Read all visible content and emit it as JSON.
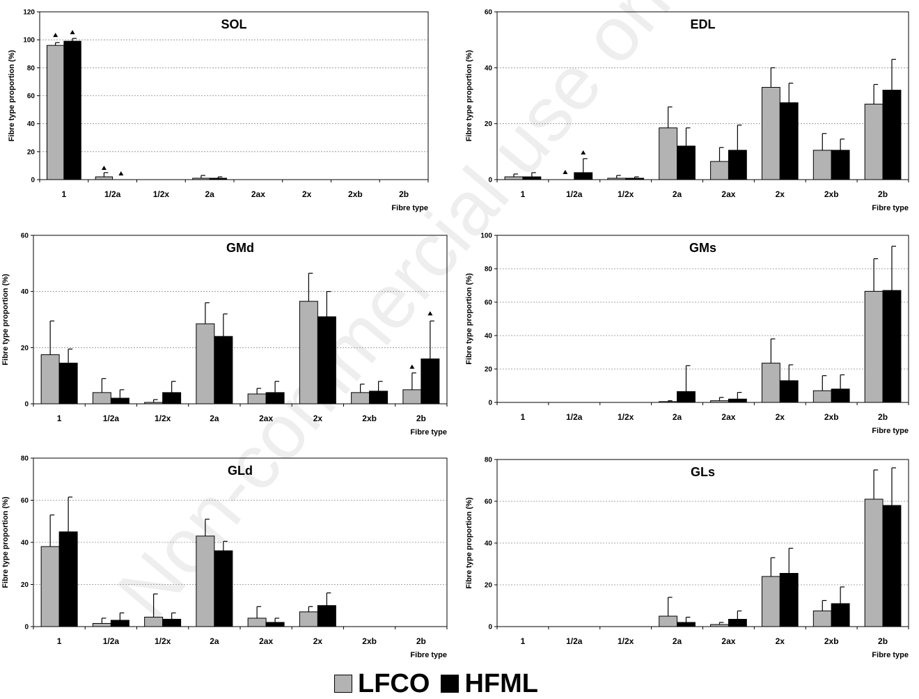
{
  "watermark": "Non-commercial use only",
  "legend": {
    "items": [
      {
        "label": "LFCO",
        "color": "#b3b3b3"
      },
      {
        "label": "HFML",
        "color": "#000000"
      }
    ]
  },
  "chart_data": [
    {
      "type": "bar",
      "title": "SOL",
      "xlabel": "Fibre type",
      "ylabel": "Fibre type proportion (%)",
      "ylim": [
        0,
        120
      ],
      "yticks": [
        0,
        20,
        40,
        60,
        80,
        100,
        120
      ],
      "grid": true,
      "categories": [
        "1",
        "1/2a",
        "1/2x",
        "2a",
        "2ax",
        "2x",
        "2xb",
        "2b"
      ],
      "series": [
        {
          "name": "LFCO",
          "color": "#b3b3b3",
          "values": [
            96,
            2,
            0,
            1,
            0,
            0,
            0,
            0
          ],
          "errors": [
            2,
            3,
            0,
            2,
            0,
            0,
            0,
            0
          ]
        },
        {
          "name": "HFML",
          "color": "#000000",
          "values": [
            99,
            0,
            0,
            1,
            0,
            0,
            0,
            0
          ],
          "errors": [
            2,
            0,
            0,
            1,
            0,
            0,
            0,
            0
          ]
        }
      ],
      "markers": [
        {
          "category": 0,
          "series": 0,
          "y": 102
        },
        {
          "category": 0,
          "series": 1,
          "y": 104
        },
        {
          "category": 1,
          "series": 0,
          "y": 7
        },
        {
          "category": 1,
          "series": 1,
          "y": 3
        }
      ]
    },
    {
      "type": "bar",
      "title": "EDL",
      "xlabel": "Fibre type",
      "ylabel": "Fibre type proportion (%)",
      "ylim": [
        0,
        60
      ],
      "yticks": [
        0,
        20,
        40,
        60
      ],
      "grid": true,
      "categories": [
        "1",
        "1/2a",
        "1/2x",
        "2a",
        "2ax",
        "2x",
        "2xb",
        "2b"
      ],
      "series": [
        {
          "name": "LFCO",
          "color": "#b3b3b3",
          "values": [
            1,
            0,
            0.5,
            18.5,
            6.5,
            33,
            10.5,
            27
          ],
          "errors": [
            1,
            0,
            1,
            7.5,
            5,
            7,
            6,
            7
          ]
        },
        {
          "name": "HFML",
          "color": "#000000",
          "values": [
            1,
            2.5,
            0.5,
            12,
            10.5,
            27.5,
            10.5,
            32
          ],
          "errors": [
            1.5,
            5,
            0.5,
            6.5,
            9,
            7,
            4,
            11
          ]
        }
      ],
      "markers": [
        {
          "category": 1,
          "series": 0,
          "y": 2
        },
        {
          "category": 1,
          "series": 1,
          "y": 9
        }
      ]
    },
    {
      "type": "bar",
      "title": "GMd",
      "xlabel": "Fibre type",
      "ylabel": "Fibre type proportion (%)",
      "ylim": [
        0,
        60
      ],
      "yticks": [
        0,
        20,
        40,
        60
      ],
      "grid": true,
      "categories": [
        "1",
        "1/2a",
        "1/2x",
        "2a",
        "2ax",
        "2x",
        "2xb",
        "2b"
      ],
      "series": [
        {
          "name": "LFCO",
          "color": "#b3b3b3",
          "values": [
            17.5,
            4,
            0.5,
            28.5,
            3.5,
            36.5,
            4,
            5
          ],
          "errors": [
            12,
            5,
            1,
            7.5,
            2,
            10,
            3,
            6
          ]
        },
        {
          "name": "HFML",
          "color": "#000000",
          "values": [
            14.5,
            2,
            4,
            24,
            4,
            31,
            4.5,
            16
          ],
          "errors": [
            5,
            3,
            4,
            8,
            4,
            9,
            3.5,
            13.5
          ]
        }
      ],
      "markers": [
        {
          "category": 7,
          "series": 0,
          "y": 12.5
        },
        {
          "category": 7,
          "series": 1,
          "y": 31.5
        }
      ]
    },
    {
      "type": "bar",
      "title": "GMs",
      "xlabel": "Fibre type",
      "ylabel": "Fibre type proportion (%)",
      "ylim": [
        0,
        100
      ],
      "yticks": [
        0,
        20,
        40,
        60,
        80,
        100
      ],
      "grid": true,
      "categories": [
        "1",
        "1/2a",
        "1/2x",
        "2a",
        "2ax",
        "2x",
        "2xb",
        "2b"
      ],
      "series": [
        {
          "name": "LFCO",
          "color": "#b3b3b3",
          "values": [
            0,
            0,
            0,
            0.5,
            1,
            23.5,
            7,
            66.5
          ],
          "errors": [
            0,
            0,
            0,
            0.5,
            2,
            14.5,
            9,
            19.5
          ]
        },
        {
          "name": "HFML",
          "color": "#000000",
          "values": [
            0,
            0,
            0,
            6.5,
            2,
            13,
            8,
            67
          ],
          "errors": [
            0,
            0,
            0,
            15.5,
            4,
            9.5,
            8.5,
            26.5
          ]
        }
      ],
      "markers": []
    },
    {
      "type": "bar",
      "title": "GLd",
      "xlabel": "Fibre type",
      "ylabel": "Fibre type proportion (%)",
      "ylim": [
        0,
        80
      ],
      "yticks": [
        0,
        20,
        40,
        60,
        80
      ],
      "grid": true,
      "categories": [
        "1",
        "1/2a",
        "1/2x",
        "2a",
        "2ax",
        "2x",
        "2xb",
        "2b"
      ],
      "series": [
        {
          "name": "LFCO",
          "color": "#b3b3b3",
          "values": [
            38,
            1.5,
            4.5,
            43,
            4,
            7,
            0,
            0
          ],
          "errors": [
            15,
            2.5,
            11,
            8,
            5.5,
            2.5,
            0,
            0
          ]
        },
        {
          "name": "HFML",
          "color": "#000000",
          "values": [
            45,
            3,
            3.5,
            36,
            2,
            10,
            0,
            0
          ],
          "errors": [
            16.5,
            3.5,
            3,
            4.5,
            2,
            6,
            0,
            0
          ]
        }
      ],
      "markers": []
    },
    {
      "type": "bar",
      "title": "GLs",
      "xlabel": "Fibre type",
      "ylabel": "Fibre type proportion (%)",
      "ylim": [
        0,
        80
      ],
      "yticks": [
        0,
        20,
        40,
        60,
        80
      ],
      "grid": true,
      "categories": [
        "1",
        "1/2a",
        "1/2x",
        "2a",
        "2ax",
        "2x",
        "2xb",
        "2b"
      ],
      "series": [
        {
          "name": "LFCO",
          "color": "#b3b3b3",
          "values": [
            0,
            0,
            0,
            5,
            1,
            24,
            7.5,
            61
          ],
          "errors": [
            0,
            0,
            0,
            9,
            1,
            9,
            5,
            14
          ]
        },
        {
          "name": "HFML",
          "color": "#000000",
          "values": [
            0,
            0,
            0,
            2,
            3.5,
            25.5,
            11,
            58
          ],
          "errors": [
            0,
            0,
            0,
            2.5,
            4,
            12,
            8,
            18
          ]
        }
      ],
      "markers": []
    }
  ]
}
